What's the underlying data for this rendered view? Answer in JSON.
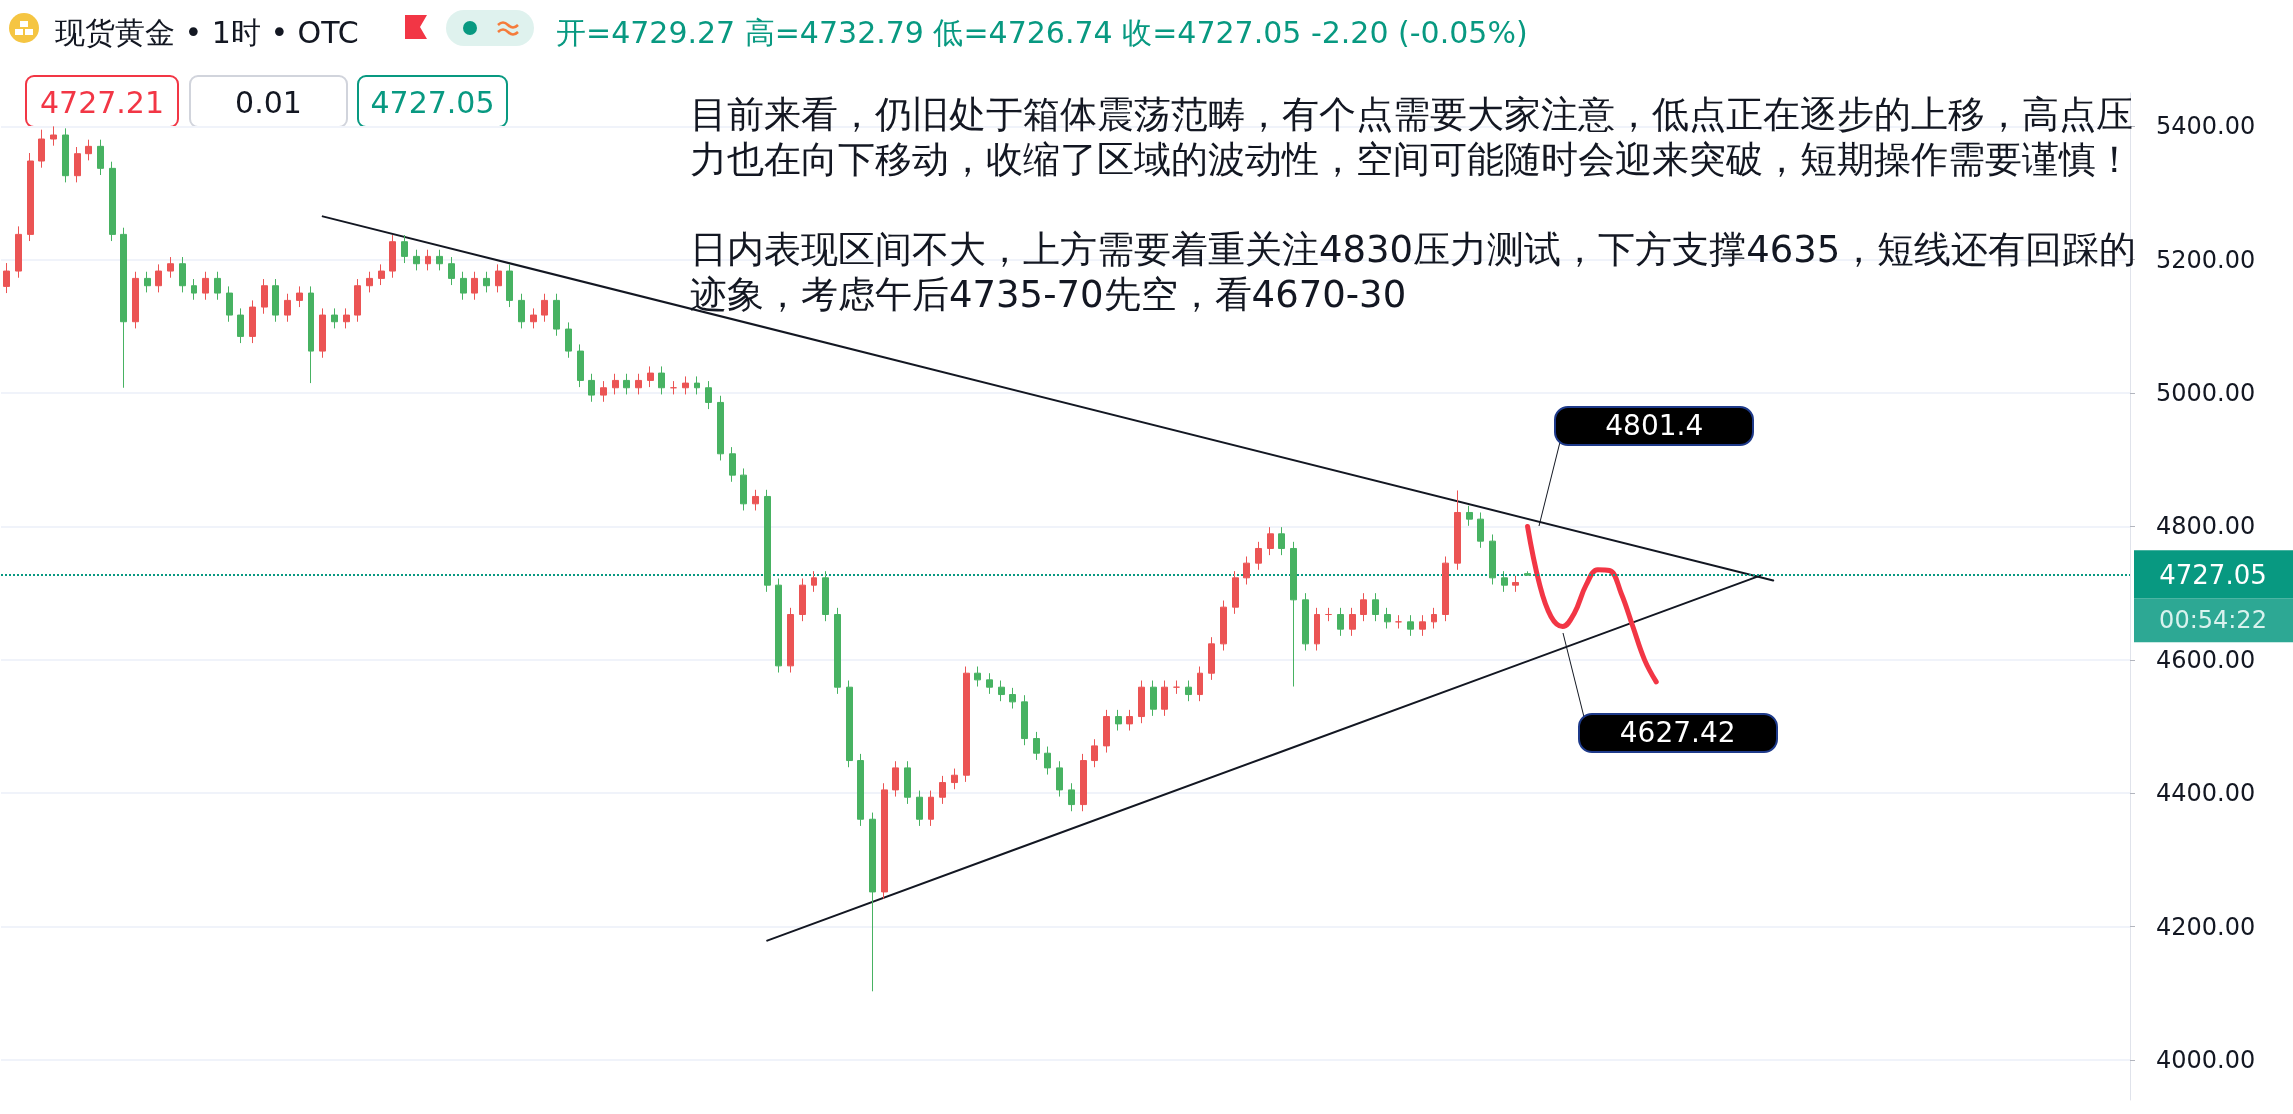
{
  "chart_data": {
    "type": "candlestick",
    "title": "现货黄金 • 1时 • OTC",
    "subtitle": "开=4729.27 高=4732.79 低=4726.74 收=4727.05 -2.20 (-0.05%)",
    "categories": [
      null,
      null,
      null,
      null,
      null,
      null,
      null,
      null,
      null,
      null,
      null,
      null,
      null,
      null,
      null,
      null,
      null,
      null,
      null,
      null,
      null,
      null,
      null,
      null,
      null,
      null,
      null,
      null,
      null,
      null,
      null,
      null,
      null,
      null,
      null,
      null,
      null,
      null,
      null,
      null,
      null,
      null,
      null,
      null,
      null,
      null,
      null,
      null,
      null,
      null,
      null,
      null,
      null,
      null,
      null,
      null,
      null,
      null,
      null,
      null,
      null,
      null,
      null,
      null,
      null,
      null,
      null,
      null,
      null,
      null,
      null,
      null,
      null,
      null,
      null,
      null,
      null,
      null,
      null,
      null,
      null,
      null,
      null,
      null,
      null,
      null,
      null,
      null,
      null,
      null,
      null,
      null,
      null,
      null,
      null,
      null,
      null,
      null,
      null,
      null,
      null,
      null,
      null,
      null,
      null,
      null,
      null,
      null,
      null,
      null,
      null,
      null,
      null,
      null,
      null,
      null,
      null,
      null,
      null,
      null,
      null,
      null,
      null,
      null,
      null,
      null,
      null,
      null,
      null,
      null,
      null,
      null,
      null,
      null,
      null,
      null,
      null,
      null,
      null,
      null,
      null,
      null,
      null,
      null,
      null,
      null,
      null,
      null,
      null,
      null,
      null,
      null,
      null,
      null,
      null,
      null,
      null,
      null,
      null,
      null,
      null,
      null,
      null,
      null,
      null,
      null,
      null,
      null,
      null,
      null,
      null,
      null,
      null,
      null,
      null,
      null,
      null,
      null,
      null,
      null,
      null,
      null
    ],
    "ohlc": [
      [
        5160,
        5195,
        5150,
        5183
      ],
      [
        5183,
        5250,
        5173,
        5238
      ],
      [
        5238,
        5360,
        5228,
        5348
      ],
      [
        5348,
        5395,
        5338,
        5381
      ],
      [
        5381,
        5400,
        5371,
        5387
      ],
      [
        5387,
        5397,
        5316,
        5326
      ],
      [
        5326,
        5369,
        5316,
        5359
      ],
      [
        5359,
        5380,
        5349,
        5370
      ],
      [
        5370,
        5380,
        5327,
        5337
      ],
      [
        5337,
        5347,
        5228,
        5238
      ],
      [
        5238,
        5248,
        5008,
        5107
      ],
      [
        5107,
        5182,
        5097,
        5172
      ],
      [
        5172,
        5182,
        5151,
        5161
      ],
      [
        5161,
        5193,
        5151,
        5183
      ],
      [
        5183,
        5204,
        5173,
        5194
      ],
      [
        5194,
        5204,
        5151,
        5161
      ],
      [
        5161,
        5171,
        5140,
        5150
      ],
      [
        5150,
        5182,
        5140,
        5172
      ],
      [
        5172,
        5182,
        5140,
        5150
      ],
      [
        5150,
        5160,
        5107,
        5117
      ],
      [
        5117,
        5127,
        5075,
        5085
      ],
      [
        5085,
        5139,
        5075,
        5129
      ],
      [
        5129,
        5171,
        5119,
        5161
      ],
      [
        5161,
        5171,
        5107,
        5117
      ],
      [
        5117,
        5149,
        5107,
        5139
      ],
      [
        5139,
        5160,
        5129,
        5150
      ],
      [
        5150,
        5160,
        5015,
        5063
      ],
      [
        5063,
        5127,
        5053,
        5117
      ],
      [
        5117,
        5127,
        5097,
        5107
      ],
      [
        5107,
        5127,
        5097,
        5117
      ],
      [
        5117,
        5171,
        5107,
        5161
      ],
      [
        5161,
        5182,
        5151,
        5172
      ],
      [
        5172,
        5193,
        5162,
        5183
      ],
      [
        5183,
        5237,
        5173,
        5227
      ],
      [
        5227,
        5237,
        5195,
        5205
      ],
      [
        5205,
        5215,
        5184,
        5194
      ],
      [
        5194,
        5215,
        5184,
        5205
      ],
      [
        5205,
        5215,
        5184,
        5194
      ],
      [
        5194,
        5204,
        5162,
        5172
      ],
      [
        5172,
        5182,
        5140,
        5150
      ],
      [
        5150,
        5182,
        5140,
        5172
      ],
      [
        5172,
        5182,
        5151,
        5161
      ],
      [
        5161,
        5193,
        5151,
        5183
      ],
      [
        5183,
        5193,
        5129,
        5139
      ],
      [
        5139,
        5149,
        5097,
        5107
      ],
      [
        5107,
        5127,
        5097,
        5117
      ],
      [
        5117,
        5149,
        5107,
        5139
      ],
      [
        5139,
        5149,
        5086,
        5096
      ],
      [
        5096,
        5106,
        5053,
        5063
      ],
      [
        5063,
        5073,
        5009,
        5019
      ],
      [
        5019,
        5029,
        4987,
        4997
      ],
      [
        4997,
        5018,
        4987,
        5008
      ],
      [
        5008,
        5029,
        4998,
        5019
      ],
      [
        5019,
        5029,
        4998,
        5008
      ],
      [
        5008,
        5029,
        4998,
        5019
      ],
      [
        5019,
        5040,
        5009,
        5030
      ],
      [
        5030,
        5040,
        4998,
        5008
      ],
      [
        5008,
        5018,
        4998,
        5008
      ],
      [
        5008,
        5025,
        4998,
        5015
      ],
      [
        5015,
        5025,
        4998,
        5008
      ],
      [
        5008,
        5018,
        4976,
        4986
      ],
      [
        4986,
        4996,
        4899,
        4909
      ],
      [
        4909,
        4919,
        4867,
        4877
      ],
      [
        4877,
        4887,
        4824,
        4834
      ],
      [
        4834,
        4855,
        4824,
        4845
      ],
      [
        4845,
        4855,
        4702,
        4712
      ],
      [
        4712,
        4722,
        4581,
        4591
      ],
      [
        4591,
        4678,
        4581,
        4668
      ],
      [
        4668,
        4722,
        4658,
        4712
      ],
      [
        4712,
        4733,
        4702,
        4723
      ],
      [
        4723,
        4733,
        4658,
        4668
      ],
      [
        4668,
        4678,
        4549,
        4559
      ],
      [
        4559,
        4569,
        4439,
        4449
      ],
      [
        4449,
        4459,
        4351,
        4361
      ],
      [
        4361,
        4371,
        4103,
        4252
      ],
      [
        4252,
        4415,
        4242,
        4405
      ],
      [
        4405,
        4448,
        4395,
        4438
      ],
      [
        4438,
        4448,
        4384,
        4394
      ],
      [
        4394,
        4404,
        4351,
        4361
      ],
      [
        4361,
        4404,
        4351,
        4394
      ],
      [
        4394,
        4426,
        4384,
        4416
      ],
      [
        4416,
        4437,
        4406,
        4427
      ],
      [
        4427,
        4590,
        4417,
        4580
      ],
      [
        4580,
        4590,
        4560,
        4570
      ],
      [
        4570,
        4580,
        4549,
        4559
      ],
      [
        4559,
        4569,
        4538,
        4548
      ],
      [
        4548,
        4558,
        4527,
        4537
      ],
      [
        4537,
        4547,
        4472,
        4482
      ],
      [
        4482,
        4492,
        4450,
        4460
      ],
      [
        4460,
        4470,
        4428,
        4438
      ],
      [
        4438,
        4448,
        4395,
        4405
      ],
      [
        4405,
        4415,
        4373,
        4383
      ],
      [
        4383,
        4459,
        4373,
        4449
      ],
      [
        4449,
        4481,
        4439,
        4471
      ],
      [
        4471,
        4525,
        4461,
        4515
      ],
      [
        4515,
        4525,
        4494,
        4504
      ],
      [
        4504,
        4525,
        4494,
        4515
      ],
      [
        4515,
        4569,
        4505,
        4559
      ],
      [
        4559,
        4569,
        4516,
        4526
      ],
      [
        4526,
        4569,
        4516,
        4559
      ],
      [
        4559,
        4569,
        4549,
        4559
      ],
      [
        4559,
        4569,
        4538,
        4548
      ],
      [
        4548,
        4590,
        4538,
        4580
      ],
      [
        4580,
        4634,
        4570,
        4624
      ],
      [
        4624,
        4689,
        4614,
        4679
      ],
      [
        4679,
        4733,
        4669,
        4723
      ],
      [
        4723,
        4755,
        4713,
        4745
      ],
      [
        4745,
        4777,
        4735,
        4767
      ],
      [
        4767,
        4799,
        4757,
        4789
      ],
      [
        4789,
        4799,
        4757,
        4767
      ],
      [
        4767,
        4777,
        4560,
        4690
      ],
      [
        4690,
        4700,
        4614,
        4624
      ],
      [
        4624,
        4678,
        4614,
        4668
      ],
      [
        4668,
        4678,
        4658,
        4668
      ],
      [
        4668,
        4678,
        4636,
        4646
      ],
      [
        4646,
        4678,
        4636,
        4668
      ],
      [
        4668,
        4700,
        4658,
        4690
      ],
      [
        4690,
        4700,
        4658,
        4668
      ],
      [
        4668,
        4678,
        4647,
        4657
      ],
      [
        4657,
        4667,
        4647,
        4657
      ],
      [
        4657,
        4667,
        4636,
        4646
      ],
      [
        4646,
        4667,
        4636,
        4657
      ],
      [
        4657,
        4678,
        4647,
        4668
      ],
      [
        4668,
        4755,
        4658,
        4745
      ],
      [
        4745,
        4854,
        4735,
        4821
      ],
      [
        4821,
        4831,
        4801,
        4811
      ],
      [
        4811,
        4821,
        4768,
        4778
      ],
      [
        4778,
        4788,
        4713,
        4723
      ],
      [
        4723,
        4733,
        4702,
        4712
      ],
      [
        4712,
        4726,
        4702,
        4716
      ],
      [
        4729.27,
        4732.79,
        4726.74,
        4727.05
      ],
      null,
      null,
      null,
      null,
      null,
      null,
      null,
      null,
      null,
      null,
      null,
      null,
      null,
      null,
      null,
      null,
      null,
      null,
      null,
      null,
      null,
      null,
      null,
      null,
      null,
      null,
      null,
      null,
      null,
      null,
      null,
      null,
      null,
      null,
      null,
      null,
      null,
      null,
      null,
      null,
      null,
      null,
      null,
      null,
      null,
      null,
      null,
      null,
      null,
      null,
      null
    ],
    "series": [
      {
        "type": "line",
        "color": "#131722",
        "values": [
          null,
          null,
          null,
          null,
          null,
          null,
          null,
          null,
          null,
          null,
          null,
          null,
          null,
          null,
          null,
          null,
          null,
          null,
          null,
          null,
          null,
          null,
          null,
          null,
          null,
          null,
          null,
          5265,
          null,
          null,
          null,
          null,
          null,
          null,
          null,
          null,
          null,
          null,
          null,
          null,
          null,
          null,
          null,
          null,
          null,
          null,
          null,
          null,
          null,
          null,
          null,
          null,
          null,
          null,
          null,
          null,
          null,
          null,
          null,
          null,
          null,
          null,
          null,
          null,
          null,
          null,
          null,
          null,
          null,
          null,
          null,
          null,
          null,
          null,
          null,
          null,
          null,
          null,
          null,
          null,
          null,
          null,
          null,
          null,
          null,
          null,
          null,
          null,
          null,
          null,
          null,
          null,
          null,
          null,
          null,
          null,
          null,
          null,
          null,
          null,
          null,
          null,
          null,
          null,
          null,
          null,
          null,
          null,
          null,
          null,
          null,
          null,
          null,
          null,
          null,
          null,
          null,
          null,
          null,
          null,
          null,
          null,
          null,
          null,
          null,
          null,
          null,
          null,
          null,
          null,
          null,
          null,
          null,
          null,
          null,
          null,
          null,
          null,
          null,
          null,
          null,
          null,
          null,
          null,
          null,
          null,
          null,
          null,
          null,
          null,
          null,
          4719,
          null,
          null,
          null,
          null,
          null,
          null,
          null,
          null,
          null,
          null,
          null,
          null,
          null,
          null,
          null,
          null,
          null,
          null,
          null,
          null,
          null,
          null,
          null,
          null,
          null,
          null,
          null,
          null,
          null,
          null
        ]
      },
      {
        "type": "line",
        "color": "#131722",
        "values": [
          null,
          null,
          null,
          null,
          null,
          null,
          null,
          null,
          null,
          null,
          null,
          null,
          null,
          null,
          null,
          null,
          null,
          null,
          null,
          null,
          null,
          null,
          null,
          null,
          null,
          null,
          null,
          null,
          null,
          null,
          null,
          null,
          null,
          null,
          null,
          null,
          null,
          null,
          null,
          null,
          null,
          null,
          null,
          null,
          null,
          null,
          null,
          null,
          null,
          null,
          null,
          null,
          null,
          null,
          null,
          null,
          null,
          null,
          null,
          null,
          null,
          null,
          null,
          null,
          null,
          4179,
          null,
          null,
          null,
          null,
          null,
          null,
          null,
          null,
          null,
          null,
          null,
          null,
          null,
          null,
          null,
          null,
          null,
          null,
          null,
          null,
          null,
          null,
          null,
          null,
          null,
          null,
          null,
          null,
          null,
          null,
          null,
          null,
          null,
          null,
          null,
          null,
          null,
          null,
          null,
          null,
          null,
          null,
          null,
          null,
          null,
          null,
          null,
          null,
          null,
          null,
          null,
          null,
          null,
          null,
          null,
          null,
          null,
          null,
          null,
          null,
          null,
          null,
          null,
          null,
          null,
          null,
          null,
          null,
          null,
          null,
          null,
          null,
          null,
          null,
          null,
          null,
          null,
          null,
          null,
          null,
          null,
          null,
          null,
          null,
          4727,
          null,
          null,
          null,
          null,
          null,
          null,
          null,
          null,
          null,
          null,
          null,
          null,
          null,
          null,
          null,
          null,
          null,
          null,
          null,
          null,
          null,
          null,
          null,
          null,
          null,
          null,
          null,
          null,
          null,
          null,
          null
        ]
      },
      {
        "type": "line",
        "color": "#f23645",
        "values": [
          null,
          null,
          null,
          null,
          null,
          null,
          null,
          null,
          null,
          null,
          null,
          null,
          null,
          null,
          null,
          null,
          null,
          null,
          null,
          null,
          null,
          null,
          null,
          null,
          null,
          null,
          null,
          null,
          null,
          null,
          null,
          null,
          null,
          null,
          null,
          null,
          null,
          null,
          null,
          null,
          null,
          null,
          null,
          null,
          null,
          null,
          null,
          null,
          null,
          null,
          null,
          null,
          null,
          null,
          null,
          null,
          null,
          null,
          null,
          null,
          null,
          null,
          null,
          null,
          null,
          null,
          null,
          null,
          null,
          null,
          null,
          null,
          null,
          null,
          null,
          null,
          null,
          null,
          null,
          null,
          null,
          null,
          null,
          null,
          null,
          null,
          null,
          null,
          null,
          null,
          null,
          null,
          null,
          null,
          null,
          null,
          null,
          null,
          null,
          null,
          null,
          null,
          null,
          null,
          null,
          null,
          null,
          null,
          null,
          null,
          null,
          null,
          null,
          null,
          null,
          null,
          null,
          null,
          null,
          null,
          null,
          null,
          null,
          null,
          null,
          null,
          null,
          null,
          null,
          null,
          4800,
          4715,
          4665,
          4650,
          4670,
          4712,
          4735,
          4734,
          4700,
          4650,
          4600,
          4567,
          null,
          null,
          null,
          null,
          null,
          null,
          null,
          null,
          null,
          null,
          null,
          null,
          null,
          null,
          null,
          null,
          null,
          null,
          null,
          null,
          null,
          null,
          null,
          null,
          null,
          null,
          null,
          null,
          null,
          null,
          null,
          null,
          null,
          null,
          null,
          null,
          null,
          null,
          null,
          null
        ]
      }
    ],
    "ylim": [
      3940,
      5450
    ],
    "yticks": [
      {
        "value": 4000,
        "label": "4000.00"
      },
      {
        "value": 4200,
        "label": "4200.00"
      },
      {
        "value": 4400,
        "label": "4400.00"
      },
      {
        "value": 4600,
        "label": "4600.00"
      },
      {
        "value": 4800,
        "label": "4800.00"
      },
      {
        "value": 5000,
        "label": "5000.00"
      },
      {
        "value": 5200,
        "label": "5200.00"
      },
      {
        "value": 5400,
        "label": "5400.00"
      }
    ],
    "grid": "y",
    "tick_labels": "y",
    "marker": "none",
    "ref_lines": [
      {
        "axis": "y",
        "value": 4727.05,
        "label": "4727.05",
        "color": "#089981",
        "line_style": "dotted"
      }
    ],
    "annotations": [
      "4727.21",
      "0.01",
      "4727.05",
      "目前来看，仍旧处于箱体震荡范畴，有个点需要大家注意，低点正在逐步的上移，高点压力也在向下移动，收缩了区域的波动性，空间可能随时会迎来突破，短期操作需要谨慎！",
      "日内表现区间不大，上方需要着重关注4830压力测试，下方支撑4635，短线还有回踩的迹象，考虑午后4735-70先空，看4670-30",
      "00:54:22",
      "4801.4",
      "4627.42"
    ]
  }
}
